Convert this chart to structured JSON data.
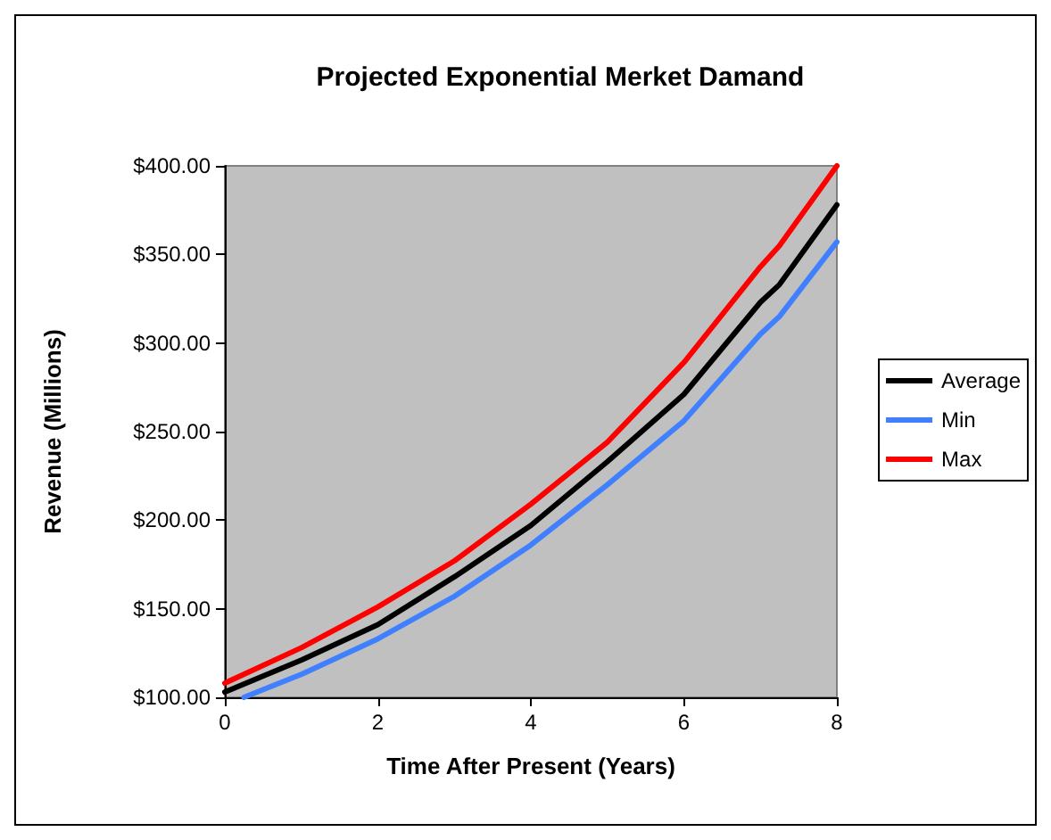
{
  "chart_data": {
    "type": "line",
    "title": "Projected Exponential Merket Damand",
    "xlabel": "Time After Present (Years)",
    "ylabel": "Revenue (Millions)",
    "x": [
      0,
      1,
      2,
      3,
      4,
      5,
      6,
      7,
      7.25,
      8
    ],
    "series": [
      {
        "name": "Average",
        "color": "#000000",
        "values": [
          103,
          121,
          141,
          168,
          197,
          233,
          271,
          323,
          333,
          378
        ]
      },
      {
        "name": "Min",
        "color": "#4080ff",
        "x": [
          0.25,
          1,
          2,
          3,
          4,
          5,
          6,
          7,
          7.25,
          8
        ],
        "values": [
          100,
          113,
          133,
          157,
          186,
          220,
          256,
          305,
          315,
          357
        ]
      },
      {
        "name": "Max",
        "color": "#ff0000",
        "values": [
          108,
          128,
          151,
          177,
          209,
          244,
          289,
          343,
          355,
          400
        ]
      }
    ],
    "xlim": [
      0,
      8
    ],
    "xticks": [
      0,
      2,
      4,
      6,
      8
    ],
    "ylim": [
      100,
      400
    ],
    "yticks": [
      {
        "value": 100,
        "label": "$100.00"
      },
      {
        "value": 150,
        "label": "$150.00"
      },
      {
        "value": 200,
        "label": "$200.00"
      },
      {
        "value": 250,
        "label": "$250.00"
      },
      {
        "value": 300,
        "label": "$300.00"
      },
      {
        "value": 350,
        "label": "$350.00"
      },
      {
        "value": 400,
        "label": "$400.00"
      }
    ],
    "grid": false,
    "legend": "right",
    "marker": "none",
    "line_style": "solid"
  }
}
